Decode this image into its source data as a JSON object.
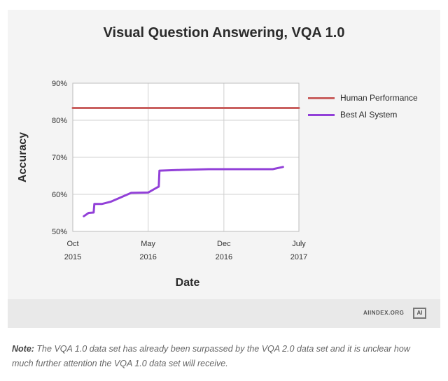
{
  "chart_data": {
    "type": "line",
    "title": "Visual Question Answering, VQA 1.0",
    "xlabel": "Date",
    "ylabel": "Accuracy",
    "xlim": [
      "2015-10-01",
      "2017-07-01"
    ],
    "ylim": [
      50,
      90
    ],
    "yticks": [
      "50%",
      "60%",
      "70%",
      "80%",
      "90%"
    ],
    "xticks": [
      {
        "date": "2015-10-01",
        "line1": "Oct",
        "line2": "2015"
      },
      {
        "date": "2016-05-01",
        "line1": "May",
        "line2": "2016"
      },
      {
        "date": "2016-12-01",
        "line1": "Dec",
        "line2": "2016"
      },
      {
        "date": "2017-07-01",
        "line1": "July",
        "line2": "2017"
      }
    ],
    "grid": true,
    "legend_position": "right",
    "series": [
      {
        "name": "Human Performance",
        "color": "#c9605f",
        "points": [
          [
            "2015-10-01",
            83.3
          ],
          [
            "2017-07-01",
            83.3
          ]
        ]
      },
      {
        "name": "Best AI System",
        "color": "#9240d8",
        "points": [
          [
            "2015-11-01",
            54.1
          ],
          [
            "2015-11-15",
            55.0
          ],
          [
            "2015-11-29",
            55.1
          ],
          [
            "2015-12-01",
            57.4
          ],
          [
            "2015-12-22",
            57.4
          ],
          [
            "2016-01-16",
            58.0
          ],
          [
            "2016-03-14",
            60.4
          ],
          [
            "2016-05-01",
            60.5
          ],
          [
            "2016-05-25",
            61.8
          ],
          [
            "2016-05-31",
            62.1
          ],
          [
            "2016-06-02",
            66.4
          ],
          [
            "2016-08-04",
            66.6
          ],
          [
            "2016-10-19",
            66.8
          ],
          [
            "2017-04-18",
            66.8
          ],
          [
            "2017-05-17",
            67.4
          ]
        ]
      }
    ]
  },
  "brand": "AIINDEX.ORG",
  "brand_logo": "AI",
  "note": {
    "label": "Note:",
    "text": " The VQA 1.0 data set has already been surpassed by the VQA 2.0 data set and it is unclear how much further attention the VQA 1.0 data set will receive."
  }
}
